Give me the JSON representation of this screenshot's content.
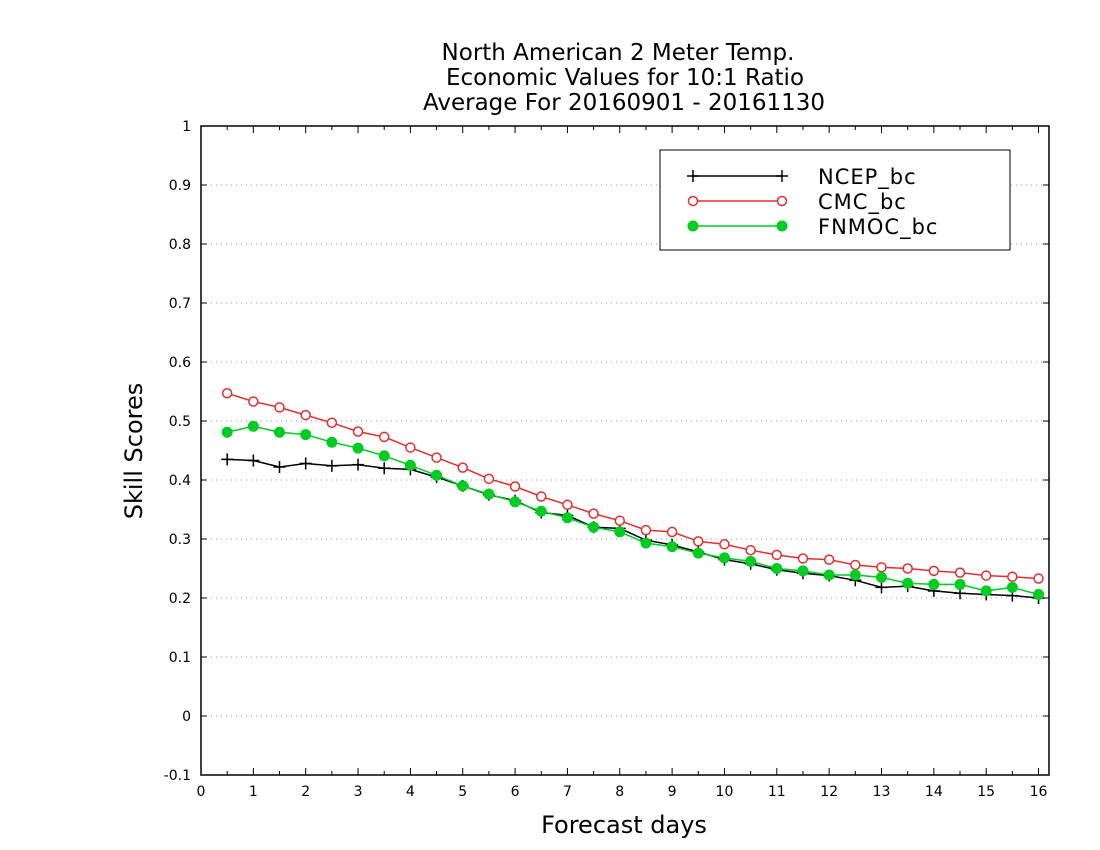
{
  "chart_data": {
    "type": "line",
    "title": [
      "North American 2 Meter Temp.",
      "Economic Values for 10:1 Ratio",
      "Average For 20160901 - 20161130"
    ],
    "xlabel": "Forecast days",
    "ylabel": "Skill Scores",
    "xlim": [
      0,
      16.2
    ],
    "ylim": [
      -0.1,
      1
    ],
    "xticks": [
      0,
      1,
      2,
      3,
      4,
      5,
      6,
      7,
      8,
      9,
      10,
      11,
      12,
      13,
      14,
      15,
      16
    ],
    "xtick_labels": [
      "0",
      "1",
      "2",
      "3",
      "4",
      "5",
      "6",
      "7",
      "8",
      "9",
      "10",
      "11",
      "12",
      "13",
      "14",
      "15",
      "16"
    ],
    "yticks": [
      -0.1,
      0,
      0.1,
      0.2,
      0.3,
      0.4,
      0.5,
      0.6,
      0.7,
      0.8,
      0.9,
      1
    ],
    "ytick_labels": [
      "-0.1",
      "0",
      "0.1",
      "0.2",
      "0.3",
      "0.4",
      "0.5",
      "0.6",
      "0.7",
      "0.8",
      "0.9",
      "1"
    ],
    "grid": "horizontal dotted",
    "legend_position": "top-right",
    "x": [
      0.5,
      1.0,
      1.5,
      2.0,
      2.5,
      3.0,
      3.5,
      4.0,
      4.5,
      5.0,
      5.5,
      6.0,
      6.5,
      7.0,
      7.5,
      8.0,
      8.5,
      9.0,
      9.5,
      10.0,
      10.5,
      11.0,
      11.5,
      12.0,
      12.5,
      13.0,
      13.5,
      14.0,
      14.5,
      15.0,
      15.5,
      16.0
    ],
    "series": [
      {
        "name": "NCEP_bc",
        "color": "#000000",
        "marker": "plus",
        "values": [
          0.435,
          0.433,
          0.422,
          0.428,
          0.424,
          0.426,
          0.42,
          0.418,
          0.405,
          0.39,
          0.375,
          0.365,
          0.345,
          0.34,
          0.32,
          0.318,
          0.298,
          0.29,
          0.278,
          0.265,
          0.258,
          0.248,
          0.242,
          0.238,
          0.23,
          0.218,
          0.22,
          0.212,
          0.208,
          0.206,
          0.204,
          0.2
        ]
      },
      {
        "name": "CMC_bc",
        "color": "#e03030",
        "marker": "open-circle",
        "values": [
          0.547,
          0.533,
          0.523,
          0.51,
          0.497,
          0.482,
          0.473,
          0.455,
          0.438,
          0.421,
          0.402,
          0.389,
          0.372,
          0.358,
          0.343,
          0.331,
          0.315,
          0.312,
          0.296,
          0.291,
          0.281,
          0.273,
          0.267,
          0.265,
          0.256,
          0.252,
          0.25,
          0.246,
          0.243,
          0.238,
          0.236,
          0.233
        ]
      },
      {
        "name": "FNMOC_bc",
        "color": "#00cc22",
        "marker": "filled-circle",
        "values": [
          0.481,
          0.491,
          0.481,
          0.477,
          0.464,
          0.454,
          0.441,
          0.425,
          0.408,
          0.39,
          0.376,
          0.363,
          0.347,
          0.336,
          0.32,
          0.312,
          0.293,
          0.287,
          0.276,
          0.268,
          0.262,
          0.25,
          0.246,
          0.239,
          0.239,
          0.235,
          0.225,
          0.223,
          0.223,
          0.212,
          0.218,
          0.206
        ]
      }
    ]
  }
}
